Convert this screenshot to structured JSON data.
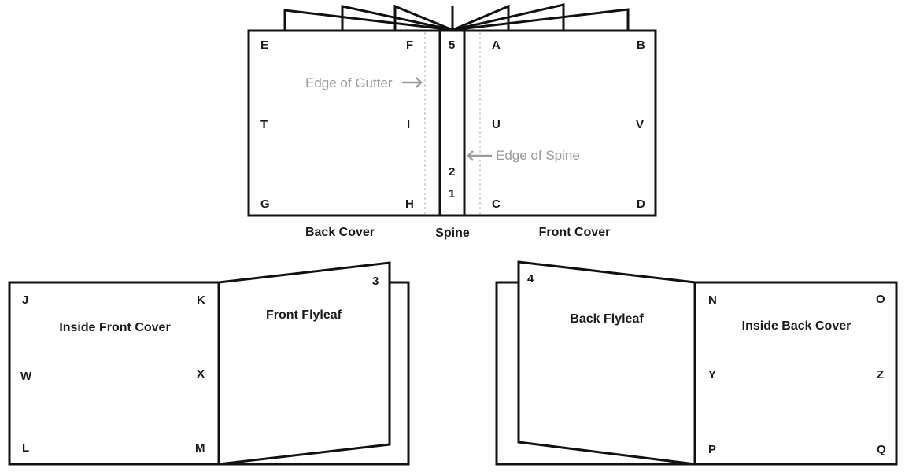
{
  "labels": {
    "E": "E",
    "F": "F",
    "G": "G",
    "H": "H",
    "T": "T",
    "I": "I",
    "A": "A",
    "B": "B",
    "C": "C",
    "D": "D",
    "U": "U",
    "V": "V",
    "n5": "5",
    "n2": "2",
    "n1": "1",
    "n3": "3",
    "n4": "4",
    "J": "J",
    "K": "K",
    "W": "W",
    "X": "X",
    "L": "L",
    "M": "M",
    "N": "N",
    "O": "O",
    "Y": "Y",
    "Z": "Z",
    "P": "P",
    "Q": "Q"
  },
  "titles": {
    "back_cover": "Back Cover",
    "spine": "Spine",
    "front_cover": "Front Cover",
    "inside_front_cover": "Inside Front Cover",
    "front_flyleaf": "Front Flyleaf",
    "back_flyleaf": "Back Flyleaf",
    "inside_back_cover": "Inside Back Cover"
  },
  "annotations": {
    "edge_of_gutter": "Edge of Gutter",
    "edge_of_spine": "Edge of Spine"
  }
}
